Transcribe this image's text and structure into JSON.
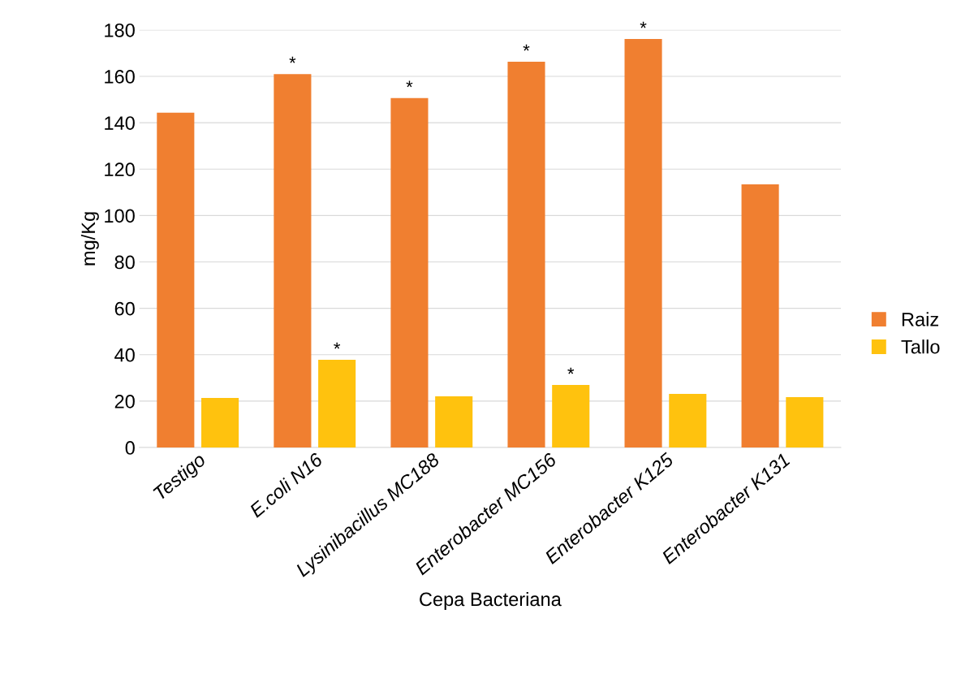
{
  "chart_data": {
    "type": "bar",
    "xlabel": "Cepa Bacteriana",
    "ylabel": "mg/Kg",
    "categories": [
      "Testigo",
      "E.coli N16",
      "Lysinibacillus MC188",
      "Enterobacter MC156",
      "Enterobacter K125",
      "Enterobacter K131"
    ],
    "series": [
      {
        "name": "Raiz",
        "color": "#f07f30",
        "values": [
          144.3,
          161,
          150.6,
          166.3,
          176.1,
          113.4
        ],
        "value_labels": [
          null,
          "*",
          "*",
          "*",
          "*",
          null
        ]
      },
      {
        "name": "Tallo",
        "color": "#ffc20e",
        "values": [
          21.4,
          37.8,
          22.1,
          27,
          23.1,
          21.7
        ],
        "value_labels": [
          null,
          "*",
          null,
          "*",
          null,
          null
        ]
      }
    ],
    "ylim": [
      0,
      180
    ],
    "yticks": [
      0,
      20,
      40,
      60,
      80,
      100,
      120,
      140,
      160,
      180
    ],
    "grid": "y",
    "legend": "right"
  }
}
